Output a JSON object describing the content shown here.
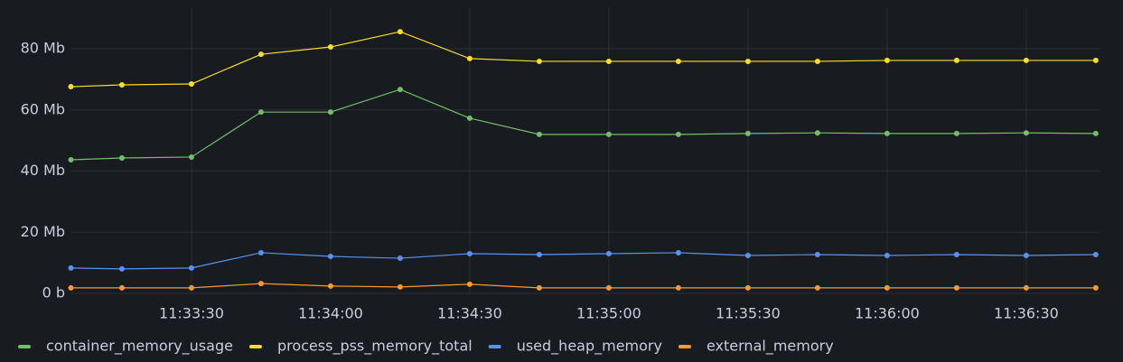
{
  "chart_data": {
    "type": "line",
    "x": [
      "11:33:04",
      "11:33:15",
      "11:33:30",
      "11:33:45",
      "11:34:00",
      "11:34:15",
      "11:34:30",
      "11:34:45",
      "11:35:00",
      "11:35:15",
      "11:35:30",
      "11:35:45",
      "11:36:00",
      "11:36:15",
      "11:36:30",
      "11:36:45"
    ],
    "series": [
      {
        "name": "container_memory_usage",
        "color": "#73bf69",
        "values": [
          43.7,
          44.3,
          44.6,
          59.3,
          59.3,
          66.7,
          57.3,
          52.0,
          52.0,
          52.0,
          52.3,
          52.5,
          52.3,
          52.3,
          52.5,
          52.3
        ]
      },
      {
        "name": "process_pss_memory_total",
        "color": "#fade2a",
        "values": [
          67.6,
          68.2,
          68.5,
          78.2,
          80.6,
          85.6,
          76.8,
          75.9,
          75.9,
          75.9,
          75.9,
          75.9,
          76.2,
          76.2,
          76.2,
          76.2
        ]
      },
      {
        "name": "used_heap_memory",
        "color": "#5794f2",
        "values": [
          8.3,
          8.0,
          8.3,
          13.3,
          12.1,
          11.5,
          13.0,
          12.7,
          13.0,
          13.3,
          12.4,
          12.7,
          12.4,
          12.7,
          12.4,
          12.7
        ]
      },
      {
        "name": "external_memory",
        "color": "#ff9830",
        "values": [
          1.8,
          1.8,
          1.8,
          3.2,
          2.4,
          2.1,
          3.0,
          1.8,
          1.8,
          1.8,
          1.8,
          1.8,
          1.8,
          1.8,
          1.8,
          1.8
        ]
      }
    ],
    "xlim": [
      "11:33:04",
      "11:36:46"
    ],
    "xticks": [
      "11:33:30",
      "11:34:00",
      "11:34:30",
      "11:35:00",
      "11:35:30",
      "11:36:00",
      "11:36:30"
    ],
    "ylim": [
      0,
      93.6
    ],
    "yticks": [
      {
        "value": 0,
        "label": "0 b"
      },
      {
        "value": 20,
        "label": "20 Mb"
      },
      {
        "value": 40,
        "label": "40 Mb"
      },
      {
        "value": 60,
        "label": "60 Mb"
      },
      {
        "value": 80,
        "label": "80 Mb"
      }
    ],
    "grid": true,
    "legend": "bottom"
  }
}
